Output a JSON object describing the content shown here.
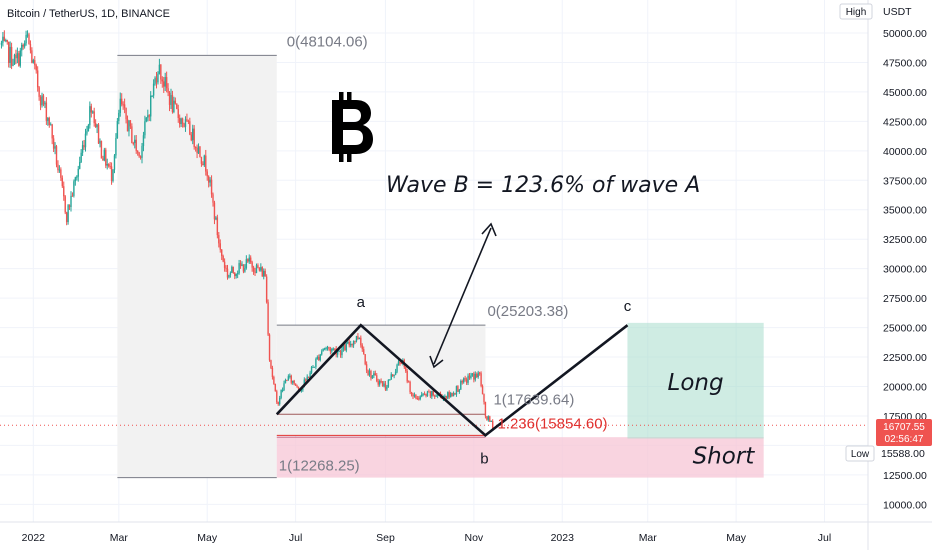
{
  "header": {
    "title": "Bitcoin / TetherUS, 1D, BINANCE",
    "currency": "USDT",
    "high_badge": "High",
    "low_badge": "Low"
  },
  "colors": {
    "up": "#26a69a",
    "down": "#ef5350",
    "price_line": "#ef5350",
    "long_zone": "#a7dccc",
    "short_zone": "#f7c5d5",
    "fib_box": "#f2f2f2",
    "fib_ext": "#e0312f"
  },
  "icons": {
    "bitcoin": "bitcoin-logo"
  },
  "annotations": {
    "main": "Wave B = 123.6% of wave A",
    "long_label": "Long",
    "short_label": "Short",
    "wave_a": "a",
    "wave_b": "b",
    "wave_c": "c",
    "fib1_top": "0(48104.06)",
    "fib1_bottom": "1(12268.25)",
    "fib2_top": "0(25203.38)",
    "fib2_bottom": "1(17639.64)",
    "fib2_ext": "1.236(15854.60)"
  },
  "price_labels": {
    "current_price": "16707.55",
    "countdown": "02:56:47",
    "low_price": "15588.00"
  },
  "chart_data": {
    "type": "candlestick",
    "title": "Bitcoin / TetherUS, 1D, BINANCE",
    "y_unit": "USDT",
    "ylim": [
      8500,
      52800
    ],
    "y_ticks": [
      50000,
      47500,
      45000,
      42500,
      40000,
      37500,
      35000,
      32500,
      30000,
      27500,
      25000,
      22500,
      20000,
      17500,
      15000,
      12500,
      10000
    ],
    "y_tick_labels": [
      "50000.00",
      "47500.00",
      "45000.00",
      "42500.00",
      "40000.00",
      "37500.00",
      "35000.00",
      "32500.00",
      "30000.00",
      "27500.00",
      "25000.00",
      "22500.00",
      "20000.00",
      "17500.00",
      "15000.00",
      "12500.00",
      "10000.00"
    ],
    "x_range": [
      "2021-12-09",
      "2023-07-31"
    ],
    "x_ticks": [
      {
        "date": "2022-01-01",
        "label": "2022"
      },
      {
        "date": "2022-03-01",
        "label": "Mar"
      },
      {
        "date": "2022-05-01",
        "label": "May"
      },
      {
        "date": "2022-07-01",
        "label": "Jul"
      },
      {
        "date": "2022-09-01",
        "label": "Sep"
      },
      {
        "date": "2022-11-01",
        "label": "Nov"
      },
      {
        "date": "2023-01-01",
        "label": "2023"
      },
      {
        "date": "2023-03-01",
        "label": "Mar"
      },
      {
        "date": "2023-05-01",
        "label": "May"
      },
      {
        "date": "2023-07-01",
        "label": "Jul"
      }
    ],
    "price_path": [
      {
        "date": "2021-12-10",
        "price": 49000
      },
      {
        "date": "2021-12-20",
        "price": 47500
      },
      {
        "date": "2021-12-28",
        "price": 49500
      },
      {
        "date": "2022-01-05",
        "price": 45000
      },
      {
        "date": "2022-01-12",
        "price": 42500
      },
      {
        "date": "2022-01-21",
        "price": 36500
      },
      {
        "date": "2022-01-24",
        "price": 34500
      },
      {
        "date": "2022-02-01",
        "price": 38500
      },
      {
        "date": "2022-02-10",
        "price": 44000
      },
      {
        "date": "2022-02-17",
        "price": 40000
      },
      {
        "date": "2022-02-24",
        "price": 38000
      },
      {
        "date": "2022-03-02",
        "price": 44000
      },
      {
        "date": "2022-03-15",
        "price": 39500
      },
      {
        "date": "2022-03-28",
        "price": 47200
      },
      {
        "date": "2022-04-08",
        "price": 43500
      },
      {
        "date": "2022-04-20",
        "price": 41500
      },
      {
        "date": "2022-05-01",
        "price": 38500
      },
      {
        "date": "2022-05-10",
        "price": 31500
      },
      {
        "date": "2022-05-15",
        "price": 29500
      },
      {
        "date": "2022-05-30",
        "price": 30500
      },
      {
        "date": "2022-06-10",
        "price": 29500
      },
      {
        "date": "2022-06-13",
        "price": 22500
      },
      {
        "date": "2022-06-18",
        "price": 18500
      },
      {
        "date": "2022-06-25",
        "price": 20800
      },
      {
        "date": "2022-07-05",
        "price": 19800
      },
      {
        "date": "2022-07-20",
        "price": 23300
      },
      {
        "date": "2022-08-01",
        "price": 23000
      },
      {
        "date": "2022-08-14",
        "price": 24300
      },
      {
        "date": "2022-08-20",
        "price": 21200
      },
      {
        "date": "2022-09-01",
        "price": 20000
      },
      {
        "date": "2022-09-12",
        "price": 22300
      },
      {
        "date": "2022-09-20",
        "price": 19000
      },
      {
        "date": "2022-10-01",
        "price": 19300
      },
      {
        "date": "2022-10-15",
        "price": 19200
      },
      {
        "date": "2022-10-29",
        "price": 20800
      },
      {
        "date": "2022-11-05",
        "price": 21000
      },
      {
        "date": "2022-11-09",
        "price": 17500
      },
      {
        "date": "2022-11-14",
        "price": 16700
      }
    ],
    "overlays": {
      "fib_retracement_1": {
        "level_0": 48104.06,
        "level_1": 12268.25,
        "date_range": [
          "2022-02-28",
          "2022-06-18"
        ]
      },
      "fib_retracement_2": {
        "level_0": 25203.38,
        "level_1": 17639.64,
        "level_1_236": 15854.6,
        "date_range": [
          "2022-06-18",
          "2022-11-09"
        ]
      },
      "wave_path": [
        {
          "date": "2022-06-18",
          "price": 17639.64,
          "label": ""
        },
        {
          "date": "2022-08-15",
          "price": 25203.38,
          "label": "a"
        },
        {
          "date": "2022-11-09",
          "price": 15854.6,
          "label": "b"
        },
        {
          "date": "2023-02-15",
          "price": 25203.38,
          "label": "c"
        }
      ],
      "long_zone": {
        "date_range": [
          "2023-02-15",
          "2023-05-20"
        ],
        "price_range": [
          15588.0,
          25400
        ]
      },
      "short_zone": {
        "date_range": [
          "2022-06-18",
          "2023-05-20"
        ],
        "price_range": [
          12268.25,
          15700
        ]
      },
      "current_price": 16707.55,
      "low_price": 15588.0
    }
  }
}
